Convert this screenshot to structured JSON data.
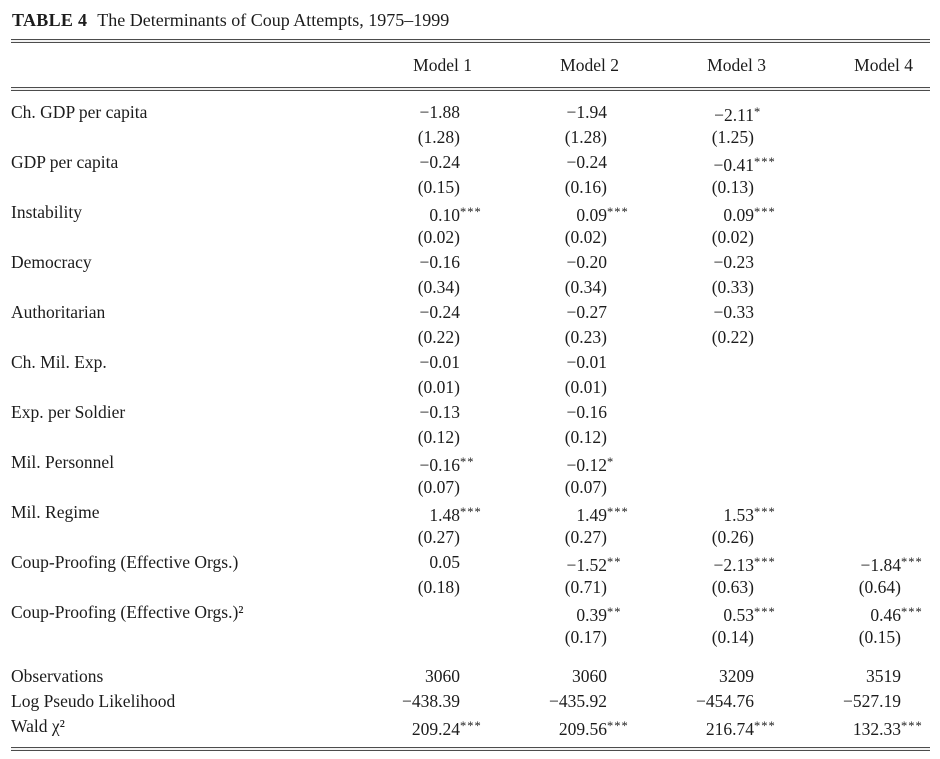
{
  "table": {
    "tag": "TABLE 4",
    "caption": "The Determinants of Coup Attempts, 1975–1999",
    "columns": [
      "Model 1",
      "Model 2",
      "Model 3",
      "Model 4"
    ],
    "rows": [
      {
        "label": "Ch. GDP per capita",
        "cells": [
          {
            "coef": "−1.88",
            "stars": "",
            "se": "(1.28)"
          },
          {
            "coef": "−1.94",
            "stars": "",
            "se": "(1.28)"
          },
          {
            "coef": "−2.11",
            "stars": "*",
            "se": "(1.25)"
          },
          null
        ]
      },
      {
        "label": "GDP per capita",
        "cells": [
          {
            "coef": "−0.24",
            "stars": "",
            "se": "(0.15)"
          },
          {
            "coef": "−0.24",
            "stars": "",
            "se": "(0.16)"
          },
          {
            "coef": "−0.41",
            "stars": "***",
            "se": "(0.13)"
          },
          null
        ]
      },
      {
        "label": "Instability",
        "cells": [
          {
            "coef": "0.10",
            "stars": "***",
            "se": "(0.02)"
          },
          {
            "coef": "0.09",
            "stars": "***",
            "se": "(0.02)"
          },
          {
            "coef": "0.09",
            "stars": "***",
            "se": "(0.02)"
          },
          null
        ]
      },
      {
        "label": "Democracy",
        "cells": [
          {
            "coef": "−0.16",
            "stars": "",
            "se": "(0.34)"
          },
          {
            "coef": "−0.20",
            "stars": "",
            "se": "(0.34)"
          },
          {
            "coef": "−0.23",
            "stars": "",
            "se": "(0.33)"
          },
          null
        ]
      },
      {
        "label": "Authoritarian",
        "cells": [
          {
            "coef": "−0.24",
            "stars": "",
            "se": "(0.22)"
          },
          {
            "coef": "−0.27",
            "stars": "",
            "se": "(0.23)"
          },
          {
            "coef": "−0.33",
            "stars": "",
            "se": "(0.22)"
          },
          null
        ]
      },
      {
        "label": "Ch. Mil. Exp.",
        "cells": [
          {
            "coef": "−0.01",
            "stars": "",
            "se": "(0.01)"
          },
          {
            "coef": "−0.01",
            "stars": "",
            "se": "(0.01)"
          },
          null,
          null
        ]
      },
      {
        "label": "Exp. per Soldier",
        "cells": [
          {
            "coef": "−0.13",
            "stars": "",
            "se": "(0.12)"
          },
          {
            "coef": "−0.16",
            "stars": "",
            "se": "(0.12)"
          },
          null,
          null
        ]
      },
      {
        "label": "Mil. Personnel",
        "cells": [
          {
            "coef": "−0.16",
            "stars": "**",
            "se": "(0.07)"
          },
          {
            "coef": "−0.12",
            "stars": "*",
            "se": "(0.07)"
          },
          null,
          null
        ]
      },
      {
        "label": "Mil. Regime",
        "cells": [
          {
            "coef": "1.48",
            "stars": "***",
            "se": "(0.27)"
          },
          {
            "coef": "1.49",
            "stars": "***",
            "se": "(0.27)"
          },
          {
            "coef": "1.53",
            "stars": "***",
            "se": "(0.26)"
          },
          null
        ]
      },
      {
        "label": "Coup-Proofing (Effective Orgs.)",
        "cells": [
          {
            "coef": "0.05",
            "stars": "",
            "se": "(0.18)"
          },
          {
            "coef": "−1.52",
            "stars": "**",
            "se": "(0.71)"
          },
          {
            "coef": "−2.13",
            "stars": "***",
            "se": "(0.63)"
          },
          {
            "coef": "−1.84",
            "stars": "***",
            "se": "(0.64)"
          }
        ]
      },
      {
        "label": "Coup-Proofing (Effective Orgs.)²",
        "cells": [
          null,
          {
            "coef": "0.39",
            "stars": "**",
            "se": "(0.17)"
          },
          {
            "coef": "0.53",
            "stars": "***",
            "se": "(0.14)"
          },
          {
            "coef": "0.46",
            "stars": "***",
            "se": "(0.15)"
          }
        ]
      }
    ],
    "stats": [
      {
        "label": "Observations",
        "values": [
          {
            "v": "3060",
            "stars": ""
          },
          {
            "v": "3060",
            "stars": ""
          },
          {
            "v": "3209",
            "stars": ""
          },
          {
            "v": "3519",
            "stars": ""
          }
        ]
      },
      {
        "label": "Log Pseudo Likelihood",
        "values": [
          {
            "v": "−438.39",
            "stars": ""
          },
          {
            "v": "−435.92",
            "stars": ""
          },
          {
            "v": "−454.76",
            "stars": ""
          },
          {
            "v": "−527.19",
            "stars": ""
          }
        ]
      },
      {
        "label": "Wald χ²",
        "values": [
          {
            "v": "209.24",
            "stars": "***"
          },
          {
            "v": "209.56",
            "stars": "***"
          },
          {
            "v": "216.74",
            "stars": "***"
          },
          {
            "v": "132.33",
            "stars": "***"
          }
        ]
      }
    ]
  }
}
